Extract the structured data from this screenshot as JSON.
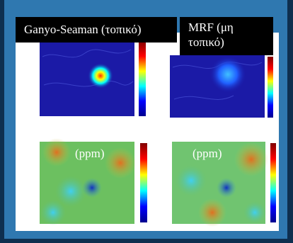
{
  "labels": {
    "left": "Ganyo-Seaman (τοπικό)",
    "right": "MRF (μη τοπικό)"
  },
  "units": [
    "(ppm)",
    "(ppm)"
  ]
}
